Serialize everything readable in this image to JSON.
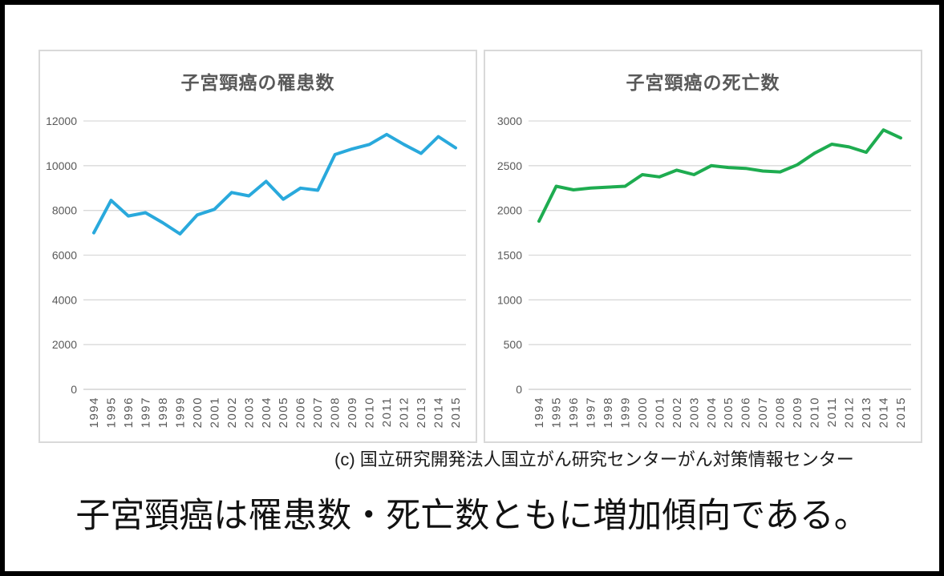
{
  "page": {
    "caption": "(c) 国立研究開発法人国立がん研究センターがん対策情報センター",
    "conclusion": "子宮頸癌は罹患数・死亡数ともに増加傾向である。"
  },
  "colors": {
    "incidence_line": "#29A9DC",
    "mortality_line": "#1EAC50",
    "gridline": "#D9D9D9",
    "axis_line": "#C9C9C9",
    "axis_text": "#595959",
    "title_text": "#595959",
    "panel_border": "#D9D9D9",
    "frame_border": "#000000"
  },
  "chart_data": [
    {
      "type": "line",
      "title": "子宮頸癌の罹患数",
      "line_color": "#29A9DC",
      "categories": [
        "1994",
        "1995",
        "1996",
        "1997",
        "1998",
        "1999",
        "2000",
        "2001",
        "2002",
        "2003",
        "2004",
        "2005",
        "2006",
        "2007",
        "2008",
        "2009",
        "2010",
        "2011",
        "2012",
        "2013",
        "2014",
        "2015"
      ],
      "values": [
        7000,
        8450,
        7750,
        7900,
        7450,
        6950,
        7800,
        8050,
        8800,
        8650,
        9300,
        8500,
        9000,
        8900,
        10500,
        10750,
        10950,
        11400,
        10950,
        10550,
        11300,
        10800
      ],
      "xlabel": "",
      "ylabel": "",
      "ylim": [
        0,
        12000
      ],
      "ytick_step": 2000,
      "grid": true,
      "legend": "none"
    },
    {
      "type": "line",
      "title": "子宮頸癌の死亡数",
      "line_color": "#1EAC50",
      "categories": [
        "1994",
        "1995",
        "1996",
        "1997",
        "1998",
        "1999",
        "2000",
        "2001",
        "2002",
        "2003",
        "2004",
        "2005",
        "2006",
        "2007",
        "2008",
        "2009",
        "2010",
        "2011",
        "2012",
        "2013",
        "2014",
        "2015"
      ],
      "values": [
        1880,
        2270,
        2230,
        2250,
        2260,
        2270,
        2400,
        2375,
        2450,
        2400,
        2500,
        2480,
        2470,
        2440,
        2430,
        2510,
        2640,
        2740,
        2710,
        2650,
        2900,
        2810
      ],
      "xlabel": "",
      "ylabel": "",
      "ylim": [
        0,
        3000
      ],
      "ytick_step": 500,
      "grid": true,
      "legend": "none"
    }
  ]
}
